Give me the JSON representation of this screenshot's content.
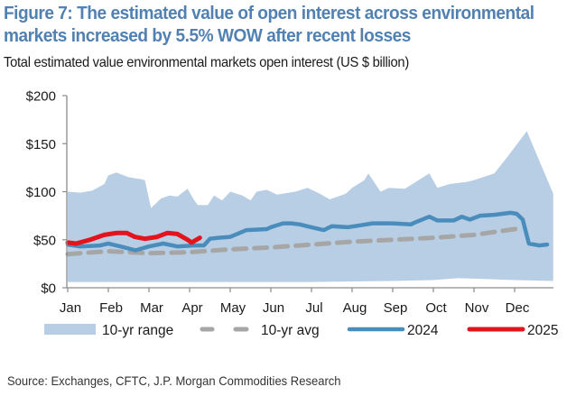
{
  "header": {
    "title": "Figure 7: The estimated value of open interest across environmental markets increased by 5.5% WOW after recent losses",
    "subtitle": "Total estimated value environmental markets open interest (US $ billion)"
  },
  "footer": {
    "source": "Source: Exchanges, CFTC, J.P. Morgan Commodities Research"
  },
  "colors": {
    "title": "#5181b2",
    "range": "#b8cee4",
    "avg": "#a6a6a6",
    "y2024": "#4a8dbd",
    "y2025": "#e3141c",
    "axis": "#8c8c8c"
  },
  "chart_data": {
    "type": "line",
    "title": "Total estimated value environmental markets open interest (US $ billion)",
    "xlabel": "",
    "ylabel": "US $ billion",
    "x_unit": "month index (0 = Jan, 11 = Dec)",
    "categories": [
      "Jan",
      "Feb",
      "Mar",
      "Apr",
      "May",
      "Jun",
      "Jul",
      "Aug",
      "Sep",
      "Oct",
      "Nov",
      "Dec"
    ],
    "xlim": [
      0,
      11.95
    ],
    "ylim": [
      0,
      200
    ],
    "yticks": [
      0,
      50,
      100,
      150,
      200
    ],
    "ytick_labels": [
      "$0",
      "$50",
      "$100",
      "$150",
      "$200"
    ],
    "grid": false,
    "legend_position": "bottom",
    "range": {
      "name": "10-yr range",
      "upper": [
        [
          0,
          100
        ],
        [
          0.3,
          99
        ],
        [
          0.6,
          101
        ],
        [
          0.9,
          108
        ],
        [
          1.0,
          117
        ],
        [
          1.2,
          120
        ],
        [
          1.5,
          115
        ],
        [
          1.8,
          113
        ],
        [
          1.9,
          112
        ],
        [
          2.05,
          83
        ],
        [
          2.3,
          93
        ],
        [
          2.5,
          96
        ],
        [
          2.7,
          95
        ],
        [
          2.95,
          103
        ],
        [
          3.1,
          92
        ],
        [
          3.2,
          86
        ],
        [
          3.45,
          86
        ],
        [
          3.6,
          96
        ],
        [
          3.8,
          91
        ],
        [
          4.0,
          100
        ],
        [
          4.3,
          96
        ],
        [
          4.5,
          91
        ],
        [
          4.65,
          100
        ],
        [
          4.9,
          102
        ],
        [
          5.15,
          97
        ],
        [
          5.6,
          100
        ],
        [
          5.9,
          104
        ],
        [
          6.2,
          98
        ],
        [
          6.45,
          92
        ],
        [
          6.85,
          98
        ],
        [
          7.0,
          104
        ],
        [
          7.3,
          112
        ],
        [
          7.4,
          119
        ],
        [
          7.7,
          100
        ],
        [
          7.9,
          104
        ],
        [
          8.3,
          103
        ],
        [
          8.9,
          119
        ],
        [
          9.1,
          104
        ],
        [
          9.4,
          108
        ],
        [
          9.8,
          110
        ],
        [
          10.0,
          112
        ],
        [
          10.5,
          119
        ],
        [
          10.8,
          135
        ],
        [
          11.3,
          163
        ],
        [
          11.95,
          98
        ]
      ],
      "lower": [
        [
          0,
          6
        ],
        [
          2.0,
          6
        ],
        [
          4.0,
          6
        ],
        [
          6.0,
          6
        ],
        [
          8.0,
          7
        ],
        [
          9.0,
          8
        ],
        [
          9.6,
          10
        ],
        [
          10.3,
          9
        ],
        [
          11.0,
          8
        ],
        [
          11.95,
          7
        ]
      ]
    },
    "series": [
      {
        "name": "10-yr avg",
        "style": "dashed",
        "points": [
          [
            0,
            35
          ],
          [
            1.0,
            38
          ],
          [
            2.0,
            36
          ],
          [
            3.0,
            37
          ],
          [
            4.0,
            40
          ],
          [
            5.0,
            42
          ],
          [
            6.0,
            45
          ],
          [
            7.0,
            48
          ],
          [
            8.0,
            50
          ],
          [
            9.0,
            52
          ],
          [
            10.0,
            55
          ],
          [
            11.0,
            61
          ],
          [
            11.2,
            63
          ]
        ]
      },
      {
        "name": "2024",
        "style": "solid",
        "points": [
          [
            0,
            45
          ],
          [
            0.3,
            43
          ],
          [
            0.8,
            44
          ],
          [
            1.0,
            46
          ],
          [
            1.3,
            43
          ],
          [
            1.67,
            39
          ],
          [
            2.0,
            43
          ],
          [
            2.35,
            46
          ],
          [
            2.7,
            43
          ],
          [
            3.1,
            44
          ],
          [
            3.35,
            44
          ],
          [
            3.5,
            51
          ],
          [
            3.7,
            52
          ],
          [
            4.0,
            53
          ],
          [
            4.4,
            60
          ],
          [
            4.9,
            61
          ],
          [
            5.0,
            63
          ],
          [
            5.3,
            67
          ],
          [
            5.5,
            67
          ],
          [
            5.7,
            66
          ],
          [
            6.0,
            63
          ],
          [
            6.3,
            60
          ],
          [
            6.5,
            64
          ],
          [
            6.9,
            63
          ],
          [
            7.2,
            65
          ],
          [
            7.5,
            67
          ],
          [
            8.0,
            67
          ],
          [
            8.45,
            66
          ],
          [
            8.55,
            68
          ],
          [
            8.9,
            74
          ],
          [
            9.1,
            70
          ],
          [
            9.5,
            70
          ],
          [
            9.7,
            74
          ],
          [
            9.9,
            71
          ],
          [
            10.15,
            75
          ],
          [
            10.5,
            76
          ],
          [
            10.9,
            78
          ],
          [
            11.05,
            77
          ],
          [
            11.2,
            71
          ],
          [
            11.35,
            46
          ],
          [
            11.6,
            44
          ],
          [
            11.8,
            45
          ]
        ]
      },
      {
        "name": "2025",
        "style": "solid",
        "points": [
          [
            0,
            47
          ],
          [
            0.2,
            46
          ],
          [
            0.55,
            50
          ],
          [
            0.9,
            55
          ],
          [
            1.2,
            57
          ],
          [
            1.45,
            57
          ],
          [
            1.65,
            53
          ],
          [
            1.9,
            51
          ],
          [
            2.2,
            53
          ],
          [
            2.45,
            57
          ],
          [
            2.7,
            56
          ],
          [
            2.95,
            50
          ],
          [
            3.05,
            47
          ],
          [
            3.25,
            52
          ]
        ]
      }
    ],
    "legend": [
      "10-yr range",
      "10-yr avg",
      "2024",
      "2025"
    ]
  }
}
